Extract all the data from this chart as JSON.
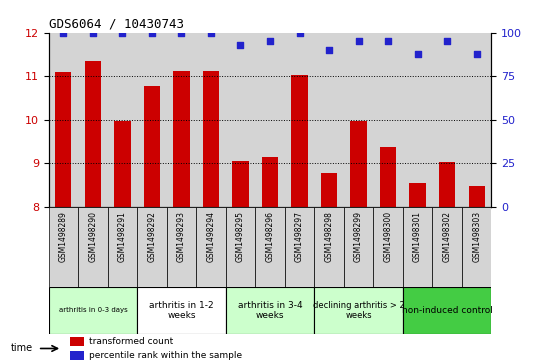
{
  "title": "GDS6064 / 10430743",
  "samples": [
    "GSM1498289",
    "GSM1498290",
    "GSM1498291",
    "GSM1498292",
    "GSM1498293",
    "GSM1498294",
    "GSM1498295",
    "GSM1498296",
    "GSM1498297",
    "GSM1498298",
    "GSM1498299",
    "GSM1498300",
    "GSM1498301",
    "GSM1498302",
    "GSM1498303"
  ],
  "bar_values": [
    11.1,
    11.35,
    9.98,
    10.78,
    11.12,
    11.12,
    9.05,
    9.15,
    11.03,
    8.78,
    9.98,
    9.38,
    8.55,
    9.02,
    8.48
  ],
  "percentile_values": [
    100,
    100,
    100,
    100,
    100,
    100,
    93,
    95,
    100,
    90,
    95,
    95,
    88,
    95,
    88
  ],
  "bar_color": "#cc0000",
  "percentile_color": "#2222cc",
  "ylim_left": [
    8,
    12
  ],
  "ylim_right": [
    0,
    100
  ],
  "yticks_left": [
    8,
    9,
    10,
    11,
    12
  ],
  "yticks_right": [
    0,
    25,
    50,
    75,
    100
  ],
  "groups": [
    {
      "label": "arthritis in 0-3 days",
      "start": 0,
      "end": 3,
      "color": "#ccffcc",
      "fontsize": 5.0
    },
    {
      "label": "arthritis in 1-2\nweeks",
      "start": 3,
      "end": 6,
      "color": "#ffffff",
      "fontsize": 6.5
    },
    {
      "label": "arthritis in 3-4\nweeks",
      "start": 6,
      "end": 9,
      "color": "#ccffcc",
      "fontsize": 6.5
    },
    {
      "label": "declining arthritis > 2\nweeks",
      "start": 9,
      "end": 12,
      "color": "#ccffcc",
      "fontsize": 6.0
    },
    {
      "label": "non-induced control",
      "start": 12,
      "end": 15,
      "color": "#44cc44",
      "fontsize": 6.5
    }
  ],
  "time_label": "time",
  "legend_red": "transformed count",
  "legend_blue": "percentile rank within the sample",
  "cell_bg_color": "#d4d4d4",
  "grid_color": "#000000",
  "dotted_yticks": [
    9,
    10,
    11
  ]
}
